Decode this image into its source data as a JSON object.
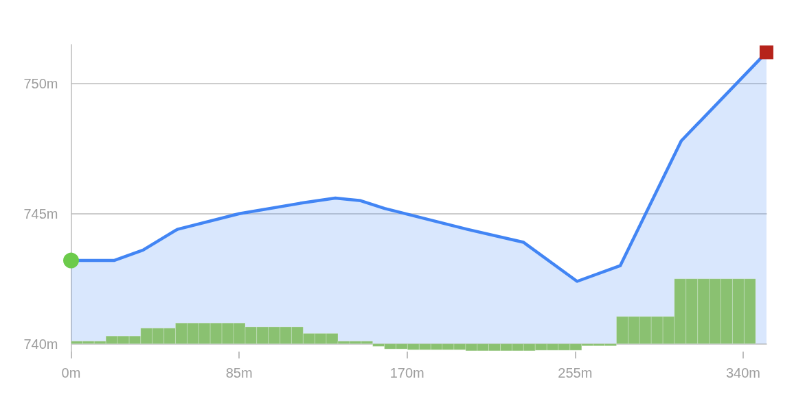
{
  "chart_data": {
    "type": "area",
    "xlim": [
      0,
      352
    ],
    "xticks": [
      {
        "value": 0,
        "label": "0m"
      },
      {
        "value": 85,
        "label": "85m"
      },
      {
        "value": 170,
        "label": "170m"
      },
      {
        "value": 255,
        "label": "255m"
      },
      {
        "value": 340,
        "label": "340m"
      }
    ],
    "ylim": [
      739.7,
      751.5
    ],
    "yticks": [
      {
        "value": 740,
        "label": "740m"
      },
      {
        "value": 745,
        "label": "745m"
      },
      {
        "value": 750,
        "label": "750m"
      }
    ],
    "grid": "y",
    "series": [
      {
        "color": "#4285f4",
        "x": [
          0,
          21.7,
          36.4,
          53.8,
          85.1,
          115.9,
          133.7,
          146.5,
          158.6,
          200.5,
          228.9,
          256.0,
          277.8,
          308.7,
          351.8
        ],
        "values": [
          743.2,
          743.2,
          743.6,
          744.4,
          745.0,
          745.4,
          745.6,
          745.5,
          745.2,
          744.4,
          743.9,
          742.4,
          743.0,
          747.8,
          751.2
        ]
      },
      {
        "type": "histogram",
        "color": "#8ac171",
        "bins": [
          0,
          5.9,
          11.7,
          17.6,
          23.5,
          29.4,
          35.2,
          41.1,
          47.0,
          52.8,
          58.7,
          64.6,
          70.4,
          76.3,
          82.2,
          88.1,
          93.9,
          99.8,
          105.7,
          111.5,
          117.4,
          123.3,
          129.1,
          135.0,
          140.9,
          146.8,
          152.6,
          158.5,
          164.4,
          170.2,
          176.1,
          182.0,
          187.8,
          193.7,
          199.6,
          205.5,
          211.3,
          217.2,
          223.1,
          228.9,
          234.8,
          240.7,
          246.5,
          252.4,
          258.3,
          264.2,
          270.0,
          275.9,
          281.8,
          287.6,
          293.5,
          299.4,
          305.2,
          311.1,
          317.0,
          322.9,
          328.7,
          334.6,
          340.5,
          346.3
        ],
        "base": [
          740,
          740,
          740,
          740,
          740,
          740,
          740,
          740,
          740,
          740,
          740,
          740,
          740,
          740,
          740,
          740,
          740,
          740,
          740,
          740,
          740,
          740,
          740,
          740,
          740,
          740,
          740,
          740,
          740,
          740,
          740,
          740,
          740,
          740,
          740,
          740,
          740,
          740,
          740,
          740,
          740,
          740,
          740,
          740,
          740,
          740,
          740,
          740,
          740,
          740,
          740,
          740,
          740,
          740,
          740,
          740,
          740,
          740,
          740
        ],
        "values": [
          0.1,
          0.1,
          0.1,
          0.3,
          0.3,
          0.3,
          0.6,
          0.6,
          0.6,
          0.8,
          0.8,
          0.8,
          0.8,
          0.8,
          0.8,
          0.65,
          0.65,
          0.65,
          0.65,
          0.65,
          0.4,
          0.4,
          0.4,
          0.1,
          0.1,
          0.1,
          -0.1,
          -0.2,
          -0.2,
          -0.23,
          -0.23,
          -0.23,
          -0.23,
          -0.23,
          -0.27,
          -0.27,
          -0.27,
          -0.27,
          -0.27,
          -0.27,
          -0.25,
          -0.25,
          -0.25,
          -0.25,
          -0.08,
          -0.08,
          -0.08,
          1.05,
          1.05,
          1.05,
          1.05,
          1.05,
          2.5,
          2.5,
          2.5,
          2.5,
          2.5,
          2.5,
          2.5
        ]
      },
      {
        "type": "scatter",
        "color": "#6ccb4b",
        "marker": "circle",
        "x": [
          0
        ],
        "values": [
          743.2
        ]
      },
      {
        "type": "scatter",
        "color": "#b6231b",
        "marker": "square",
        "x": [
          351.8
        ],
        "values": [
          751.2
        ]
      }
    ]
  }
}
